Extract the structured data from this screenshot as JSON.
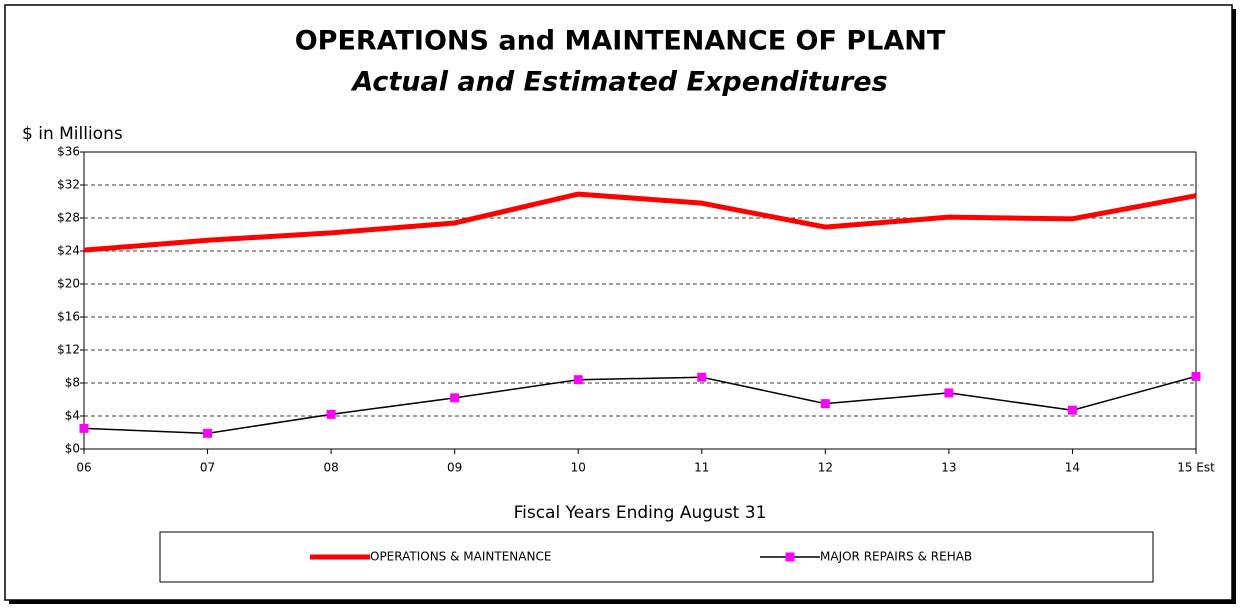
{
  "chart_data": {
    "type": "line",
    "title": "OPERATIONS and MAINTENANCE OF PLANT",
    "subtitle": "Actual and Estimated Expenditures",
    "y_label": "$ in Millions",
    "x_label": "Fiscal Years Ending August 31",
    "categories": [
      "06",
      "07",
      "08",
      "09",
      "10",
      "11",
      "12",
      "13",
      "14",
      "15 Est"
    ],
    "series": [
      {
        "name": "OPERATIONS & MAINTENANCE",
        "color": "#ff0000",
        "values": [
          24.1,
          25.3,
          26.2,
          27.4,
          30.9,
          29.8,
          26.9,
          28.1,
          27.9,
          30.7
        ]
      },
      {
        "name": "MAJOR REPAIRS & REHAB",
        "color": "#000000",
        "marker_color": "#ff00ff",
        "values": [
          2.5,
          1.9,
          4.2,
          6.2,
          8.4,
          8.7,
          5.5,
          6.8,
          4.7,
          8.8
        ]
      }
    ],
    "ylim": [
      0,
      36
    ],
    "yticks": [
      {
        "value": 0,
        "label": "$0"
      },
      {
        "value": 4,
        "label": "$4"
      },
      {
        "value": 8,
        "label": "$8"
      },
      {
        "value": 12,
        "label": "$12"
      },
      {
        "value": 16,
        "label": "$16"
      },
      {
        "value": 20,
        "label": "$20"
      },
      {
        "value": 24,
        "label": "$24"
      },
      {
        "value": 28,
        "label": "$28"
      },
      {
        "value": 32,
        "label": "$32"
      },
      {
        "value": 36,
        "label": "$36"
      }
    ],
    "grid": true
  }
}
